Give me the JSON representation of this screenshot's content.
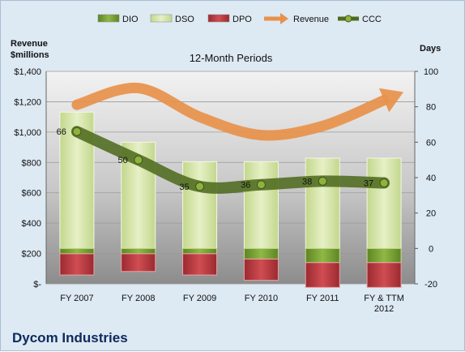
{
  "chart_data": {
    "type": "bar",
    "title": "12-Month Periods",
    "company": "Dycom Industries",
    "categories": [
      "FY 2007",
      "FY 2008",
      "FY 2009",
      "FY 2010",
      "FY 2011",
      "FY & TTM 2012"
    ],
    "left_axis": {
      "title_lines": [
        "Revenue",
        "$millions"
      ],
      "ylim": [
        0,
        1400
      ],
      "ticks": [
        0,
        200,
        400,
        600,
        800,
        1000,
        1200,
        1400
      ],
      "tick_labels": [
        "$-",
        "$200",
        "$400",
        "$600",
        "$800",
        "$1,000",
        "$1,200",
        "$1,400"
      ]
    },
    "right_axis": {
      "title": "Days",
      "ylim": [
        -20,
        100
      ],
      "ticks": [
        -20,
        0,
        20,
        40,
        60,
        80,
        100
      ],
      "tick_labels": [
        "-20",
        "0",
        "20",
        "40",
        "60",
        "80",
        "100"
      ]
    },
    "grid": true,
    "legend_position": "top",
    "series": [
      {
        "name": "DIO",
        "kind": "bar",
        "axis": "days",
        "values": [
          -3,
          -3,
          -3,
          -6,
          -8,
          -8
        ],
        "color": "#6e9a2a"
      },
      {
        "name": "DSO",
        "kind": "bar",
        "axis": "days",
        "values": [
          77,
          60,
          49,
          49,
          51,
          51
        ],
        "color": "#d4e4a8"
      },
      {
        "name": "DPO",
        "kind": "bar",
        "axis": "days",
        "values": [
          -12,
          -10,
          -12,
          -12,
          -14,
          -14
        ],
        "color": "#b0333a"
      },
      {
        "name": "Revenue",
        "kind": "line",
        "axis": "revenue",
        "values": [
          1180,
          1290,
          1100,
          980,
          1040,
          1210
        ],
        "color": "#e8914a"
      },
      {
        "name": "CCC",
        "kind": "line",
        "axis": "days",
        "values": [
          66,
          50,
          35,
          36,
          38,
          37
        ],
        "color": "#4e6b1f"
      }
    ],
    "data_labels": [
      "66",
      "50",
      "35",
      "36",
      "38",
      "37"
    ]
  },
  "colors": {
    "plot_bg_top": "#f2f2f2",
    "plot_bg_bottom": "#8c8c8c",
    "page_bg": "#dde9f3",
    "company_text": "#0d2a5c"
  }
}
